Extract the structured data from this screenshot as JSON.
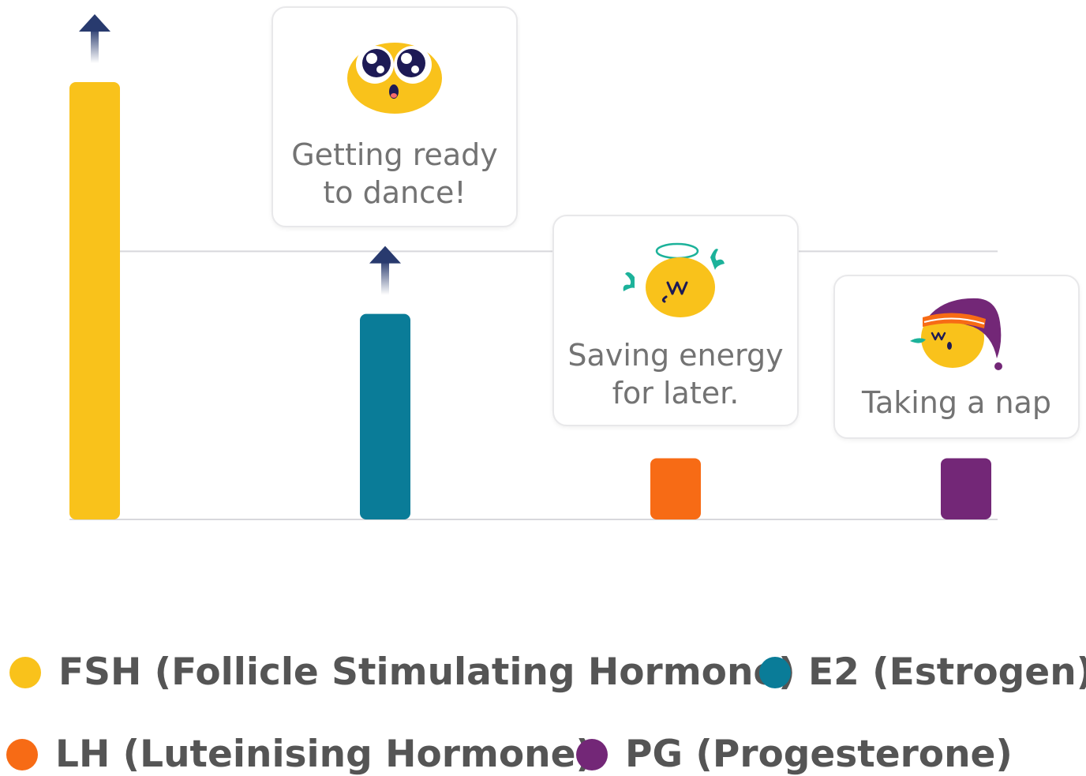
{
  "chart_data": {
    "type": "bar",
    "categories": [
      "FSH",
      "E2",
      "LH",
      "PG"
    ],
    "values": [
      100,
      47,
      14,
      14
    ],
    "rising": [
      true,
      true,
      false,
      false
    ],
    "colors": [
      "#f9c21b",
      "#0a7c98",
      "#f76b15",
      "#732777"
    ],
    "ylim": [
      0,
      100
    ],
    "grid": true,
    "legend_placement": "bottom"
  },
  "cards": {
    "e2": {
      "text": "Getting ready\nto dance!",
      "icon": "excited-face-icon"
    },
    "lh": {
      "text": "Saving energy\nfor later.",
      "icon": "angel-face-icon"
    },
    "pg": {
      "text": "Taking a nap",
      "icon": "sleeping-face-icon"
    }
  },
  "legend": [
    {
      "label": "FSH (Follicle Stimulating Hormone)",
      "color": "#f9c21b"
    },
    {
      "label": "E2 (Estrogen)",
      "color": "#0a7c98"
    },
    {
      "label": "LH (Luteinising Hormone)",
      "color": "#f76b15"
    },
    {
      "label": "PG (Progesterone)",
      "color": "#732777"
    }
  ]
}
